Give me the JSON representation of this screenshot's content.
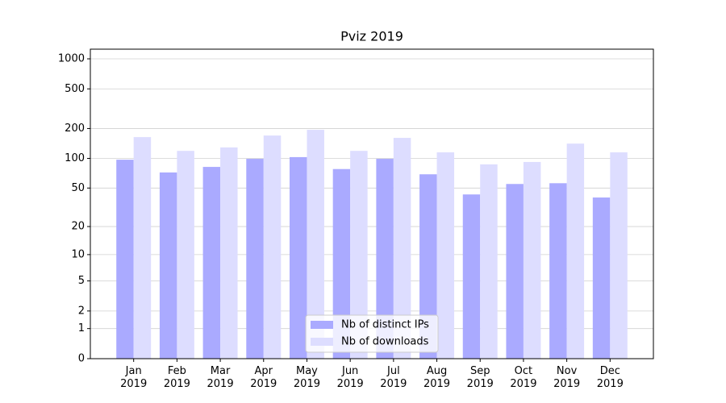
{
  "chart_data": {
    "type": "bar",
    "title": "Pviz 2019",
    "categories": [
      "Jan\n2019",
      "Feb\n2019",
      "Mar\n2019",
      "Apr\n2019",
      "May\n2019",
      "Jun\n2019",
      "Jul\n2019",
      "Aug\n2019",
      "Sep\n2019",
      "Oct\n2019",
      "Nov\n2019",
      "Dec\n2019"
    ],
    "series": [
      {
        "name": "Nb of distinct IPs",
        "color": "#aaaaff",
        "values": [
          97,
          72,
          82,
          99,
          103,
          78,
          99,
          69,
          43,
          55,
          56,
          40
        ]
      },
      {
        "name": "Nb of downloads",
        "color": "#ddddff",
        "values": [
          164,
          119,
          129,
          170,
          194,
          119,
          161,
          115,
          87,
          92,
          141,
          115
        ]
      }
    ],
    "yscale": "log1p",
    "ylim": [
      0,
      1250
    ],
    "yticks": [
      0,
      1,
      2,
      5,
      10,
      20,
      50,
      100,
      200,
      500,
      1000
    ],
    "grid": true,
    "legend": "lower center"
  }
}
